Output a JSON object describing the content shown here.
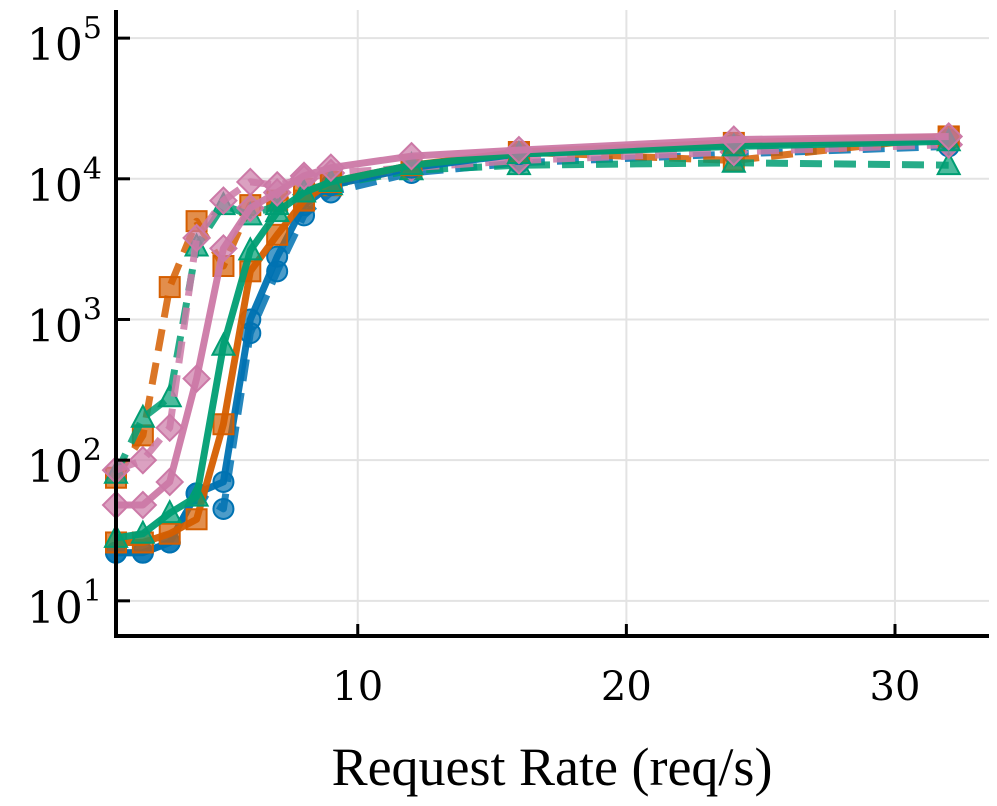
{
  "chart_data": {
    "type": "line",
    "title": "",
    "xlabel": "Request Rate (req/s)",
    "ylabel": "",
    "xlim": [
      1,
      33.5
    ],
    "ylim_log10": [
      0.75,
      5.2
    ],
    "yscale": "log",
    "grid": true,
    "x_ticks": [
      10,
      20,
      30
    ],
    "x_tick_labels": [
      "10",
      "20",
      "30"
    ],
    "y_ticks": [
      {
        "base": "10",
        "exp": "1",
        "value": 10
      },
      {
        "base": "10",
        "exp": "2",
        "value": 100
      },
      {
        "base": "10",
        "exp": "3",
        "value": 1000
      },
      {
        "base": "10",
        "exp": "4",
        "value": 10000
      },
      {
        "base": "10",
        "exp": "5",
        "value": 100000
      }
    ],
    "series": [
      {
        "name": "blue-solid",
        "color": "#0072B2",
        "marker": "circle",
        "dash": "solid",
        "x": [
          1,
          2,
          3,
          4,
          5,
          6,
          7,
          8,
          9,
          12,
          16,
          24,
          32
        ],
        "y": [
          22,
          22,
          26,
          58,
          70,
          1000,
          2800,
          6500,
          9000,
          12000,
          15000,
          17500,
          19000
        ]
      },
      {
        "name": "blue-dashed",
        "color": "#0072B2",
        "marker": "circle",
        "dash": "dashed",
        "x": [
          1,
          2,
          3,
          4,
          5,
          6,
          7,
          8,
          9,
          12,
          16,
          24,
          32
        ],
        "y": [
          22,
          22,
          26,
          58,
          45,
          800,
          2200,
          5500,
          8000,
          11000,
          13000,
          15000,
          17000
        ]
      },
      {
        "name": "orange-solid",
        "color": "#D55E00",
        "marker": "square",
        "dash": "solid",
        "x": [
          1,
          2,
          3,
          4,
          5,
          6,
          7,
          8,
          9,
          12,
          16,
          24,
          32
        ],
        "y": [
          26,
          26,
          30,
          38,
          180,
          2200,
          4000,
          7000,
          9500,
          12500,
          15500,
          18000,
          20000
        ]
      },
      {
        "name": "orange-dashed",
        "color": "#D55E00",
        "marker": "square",
        "dash": "dashed",
        "x": [
          1,
          2,
          3,
          4,
          5,
          6,
          7,
          8,
          9,
          12,
          16,
          24,
          32
        ],
        "y": [
          75,
          150,
          1700,
          5000,
          2400,
          6500,
          7000,
          8500,
          9000,
          12000,
          15500,
          13500,
          20000
        ]
      },
      {
        "name": "green-solid",
        "color": "#009E73",
        "marker": "triangle",
        "dash": "solid",
        "x": [
          1,
          2,
          3,
          4,
          5,
          6,
          7,
          8,
          9,
          12,
          16,
          24,
          32
        ],
        "y": [
          28,
          30,
          42,
          55,
          650,
          3100,
          5800,
          8000,
          9500,
          12500,
          15000,
          17000,
          18500
        ]
      },
      {
        "name": "green-dashed",
        "color": "#009E73",
        "marker": "triangle",
        "dash": "dashed",
        "x": [
          1,
          2,
          3,
          4,
          5,
          6,
          7,
          8,
          9,
          12,
          16,
          24,
          32
        ],
        "y": [
          80,
          200,
          280,
          3300,
          6500,
          5500,
          6500,
          8000,
          9000,
          11500,
          12500,
          13000,
          12500
        ]
      },
      {
        "name": "pink-solid",
        "color": "#CC79A7",
        "marker": "diamond",
        "dash": "solid",
        "x": [
          1,
          2,
          3,
          4,
          5,
          6,
          7,
          8,
          9,
          12,
          16,
          24,
          32
        ],
        "y": [
          48,
          48,
          70,
          380,
          3200,
          6200,
          8000,
          10500,
          12000,
          14500,
          16000,
          19000,
          20000
        ]
      },
      {
        "name": "pink-dashed",
        "color": "#CC79A7",
        "marker": "diamond",
        "dash": "dashed",
        "x": [
          1,
          2,
          3,
          4,
          5,
          6,
          7,
          8,
          9,
          12,
          16,
          24,
          32
        ],
        "y": [
          85,
          100,
          170,
          3800,
          7000,
          9500,
          9000,
          10000,
          11000,
          12000,
          13500,
          15500,
          17500
        ]
      }
    ]
  }
}
